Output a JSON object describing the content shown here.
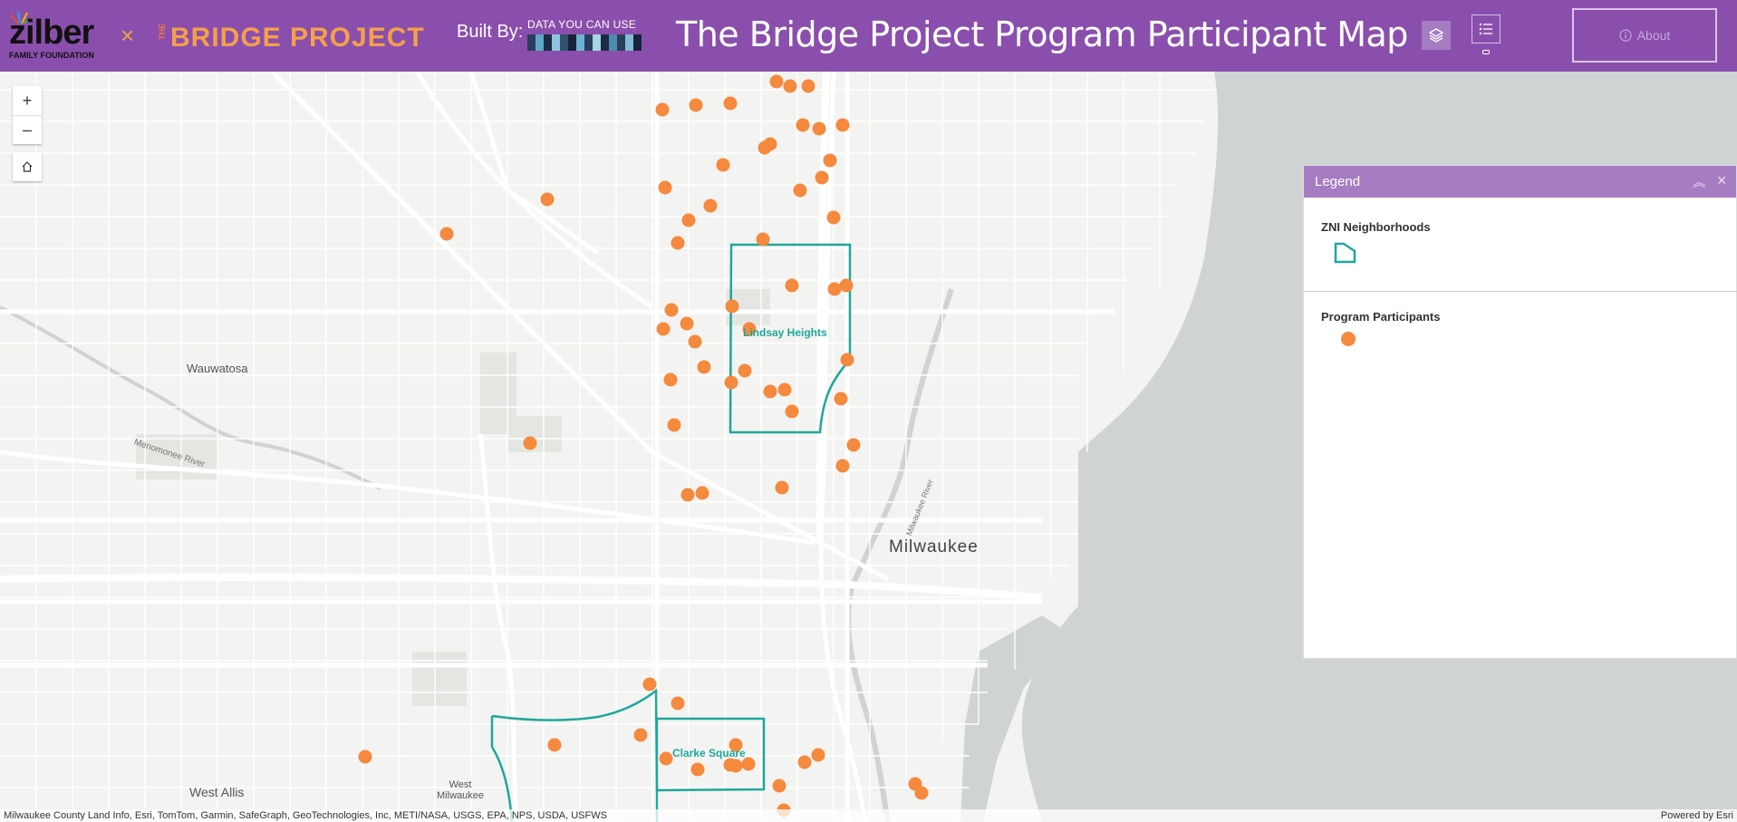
{
  "header": {
    "zilber_logo": {
      "word": "zilber",
      "sub": "FAMILY FOUNDATION"
    },
    "separator": "×",
    "bridge_logo": {
      "the": "THE",
      "name": "BRIDGE PROJECT"
    },
    "built_by": "Built By:",
    "dycu_logo": "DATA YOU CAN USE",
    "title": "The Bridge Project Program Participant Map",
    "about_label": "About",
    "about_icon": "info-circle-icon",
    "layers_icon": "layers-icon",
    "list_icon": "list-icon",
    "accent_color": "#8a4fad"
  },
  "map": {
    "zoom_in": "+",
    "zoom_out": "–",
    "home_icon": "home-icon",
    "place_labels": [
      "Wauwatosa",
      "Menomonee River",
      "West Allis",
      "West Milwaukee",
      "Milwaukee River"
    ],
    "city_label": "Milwaukee",
    "neighborhoods": [
      "Lindsay Heights",
      "Clarke Square"
    ],
    "neighborhood_color": "#1ea79b",
    "participant_color": "#f5893d",
    "attribution": "Milwaukee County Land Info, Esri, TomTom, Garmin, SafeGraph, GeoTechnologies, Inc, METI/NASA, USGS, EPA, NPS, USDA, USFWS",
    "powered_by": "Powered by Esri"
  },
  "legend": {
    "title": "Legend",
    "sections": [
      {
        "title": "ZNI Neighborhoods",
        "symbol": "polygon-outline"
      },
      {
        "title": "Program Participants",
        "symbol": "orange-circle"
      }
    ]
  }
}
